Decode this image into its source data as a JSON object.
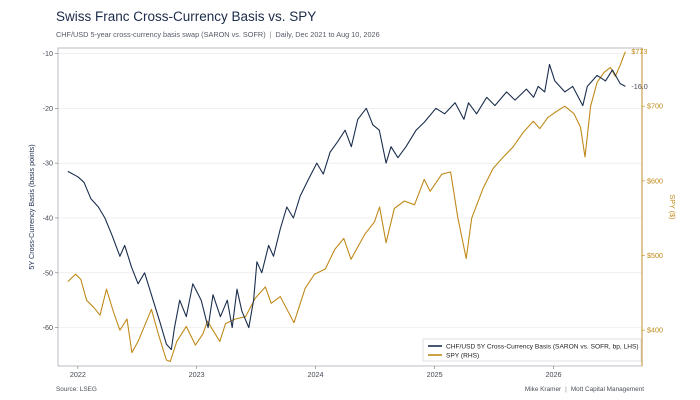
{
  "header": {
    "title": "Swiss Franc Cross-Currency Basis vs. SPY",
    "subtitle_a": "CHF/USD 5-year cross-currency basis swap (SARON vs. SOFR)",
    "subtitle_sep": "|",
    "subtitle_b": "Daily, Dec 2021 to Aug 10, 2026"
  },
  "footer": {
    "source": "Source: LSEG",
    "author": "Mike Kramer",
    "sep": "|",
    "org": "Mott Capital Management"
  },
  "colors": {
    "basis": "#1b2e4e",
    "spy": "#c08a1a",
    "grid": "#e6e6e6"
  },
  "chart_data": {
    "type": "line",
    "title": "Swiss Franc Cross-Currency Basis vs. SPY",
    "x_ticks": [
      "2022",
      "2023",
      "2024",
      "2025",
      "2026"
    ],
    "x_range": [
      "2021-11-01",
      "2026-09-30"
    ],
    "y_left": {
      "label": "5Y Cross-Currency Basis  (basis points)",
      "range": [
        -67,
        -9
      ],
      "ticks": [
        -10,
        -20,
        -30,
        -40,
        -50,
        -60
      ]
    },
    "y_right": {
      "label": "SPY  ($)",
      "range": [
        352,
        778
      ],
      "ticks": [
        400,
        500,
        600,
        700
      ],
      "tick_labels": [
        "$400",
        "$500",
        "$600",
        "$700"
      ]
    },
    "grid": true,
    "legend_position": "bottom-right",
    "series": [
      {
        "name": "CHF/USD 5Y Cross-Currency Basis (SARON vs. SOFR, bp, LHS)",
        "axis": "left",
        "end_label": "-16.0",
        "points": [
          [
            "2021-12-01",
            -31.5
          ],
          [
            "2022-01-01",
            -32.5
          ],
          [
            "2022-01-20",
            -33.5
          ],
          [
            "2022-02-10",
            -36.5
          ],
          [
            "2022-03-05",
            -38
          ],
          [
            "2022-03-25",
            -40
          ],
          [
            "2022-04-15",
            -43
          ],
          [
            "2022-05-10",
            -47
          ],
          [
            "2022-05-25",
            -45
          ],
          [
            "2022-06-15",
            -49
          ],
          [
            "2022-07-05",
            -52
          ],
          [
            "2022-07-25",
            -50
          ],
          [
            "2022-08-15",
            -54
          ],
          [
            "2022-09-10",
            -59
          ],
          [
            "2022-09-30",
            -63
          ],
          [
            "2022-10-15",
            -64
          ],
          [
            "2022-10-25",
            -60
          ],
          [
            "2022-11-10",
            -55
          ],
          [
            "2022-11-30",
            -58
          ],
          [
            "2022-12-20",
            -52
          ],
          [
            "2023-01-15",
            -55
          ],
          [
            "2023-02-05",
            -60
          ],
          [
            "2023-02-20",
            -54
          ],
          [
            "2023-03-15",
            -58
          ],
          [
            "2023-04-05",
            -55
          ],
          [
            "2023-04-20",
            -60
          ],
          [
            "2023-05-05",
            -53
          ],
          [
            "2023-05-20",
            -57
          ],
          [
            "2023-06-10",
            -60
          ],
          [
            "2023-06-25",
            -55
          ],
          [
            "2023-07-05",
            -48
          ],
          [
            "2023-07-20",
            -50
          ],
          [
            "2023-08-10",
            -45
          ],
          [
            "2023-08-25",
            -47
          ],
          [
            "2023-09-15",
            -42
          ],
          [
            "2023-10-05",
            -38
          ],
          [
            "2023-10-25",
            -40
          ],
          [
            "2023-11-15",
            -36
          ],
          [
            "2023-12-10",
            -33
          ],
          [
            "2024-01-05",
            -30
          ],
          [
            "2024-01-25",
            -32
          ],
          [
            "2024-02-15",
            -28
          ],
          [
            "2024-03-10",
            -26
          ],
          [
            "2024-04-01",
            -24
          ],
          [
            "2024-04-20",
            -27
          ],
          [
            "2024-05-10",
            -22
          ],
          [
            "2024-06-05",
            -20
          ],
          [
            "2024-06-25",
            -23
          ],
          [
            "2024-07-15",
            -24
          ],
          [
            "2024-08-05",
            -30
          ],
          [
            "2024-08-20",
            -27
          ],
          [
            "2024-09-10",
            -29
          ],
          [
            "2024-10-05",
            -27
          ],
          [
            "2024-11-05",
            -24
          ],
          [
            "2024-12-01",
            -22.5
          ],
          [
            "2025-01-05",
            -20
          ],
          [
            "2025-02-01",
            -21
          ],
          [
            "2025-03-05",
            -19
          ],
          [
            "2025-04-01",
            -22
          ],
          [
            "2025-04-15",
            -19
          ],
          [
            "2025-05-10",
            -21
          ],
          [
            "2025-06-10",
            -18
          ],
          [
            "2025-07-05",
            -19.5
          ],
          [
            "2025-08-10",
            -17
          ],
          [
            "2025-09-05",
            -18.5
          ],
          [
            "2025-10-10",
            -16.5
          ],
          [
            "2025-11-01",
            -18
          ],
          [
            "2025-11-15",
            -16
          ],
          [
            "2025-12-05",
            -17
          ],
          [
            "2025-12-20",
            -12
          ],
          [
            "2026-01-05",
            -15
          ],
          [
            "2026-02-05",
            -17
          ],
          [
            "2026-03-01",
            -16
          ],
          [
            "2026-04-01",
            -19.5
          ],
          [
            "2026-04-15",
            -16
          ],
          [
            "2026-05-15",
            -14
          ],
          [
            "2026-06-10",
            -15
          ],
          [
            "2026-07-01",
            -13
          ],
          [
            "2026-07-25",
            -15.5
          ],
          [
            "2026-08-10",
            -16
          ]
        ]
      },
      {
        "name": "SPY (RHS)",
        "axis": "right",
        "end_label": "$773",
        "points": [
          [
            "2021-12-01",
            465
          ],
          [
            "2021-12-25",
            475
          ],
          [
            "2022-01-10",
            468
          ],
          [
            "2022-01-28",
            440
          ],
          [
            "2022-02-20",
            430
          ],
          [
            "2022-03-10",
            420
          ],
          [
            "2022-03-30",
            455
          ],
          [
            "2022-04-20",
            425
          ],
          [
            "2022-05-10",
            400
          ],
          [
            "2022-06-01",
            415
          ],
          [
            "2022-06-16",
            370
          ],
          [
            "2022-07-05",
            385
          ],
          [
            "2022-08-15",
            428
          ],
          [
            "2022-09-05",
            395
          ],
          [
            "2022-09-30",
            360
          ],
          [
            "2022-10-12",
            358
          ],
          [
            "2022-11-01",
            385
          ],
          [
            "2022-11-30",
            405
          ],
          [
            "2022-12-28",
            380
          ],
          [
            "2023-01-20",
            395
          ],
          [
            "2023-02-03",
            412
          ],
          [
            "2023-03-13",
            385
          ],
          [
            "2023-03-31",
            409
          ],
          [
            "2023-04-30",
            415
          ],
          [
            "2023-05-31",
            418
          ],
          [
            "2023-06-30",
            443
          ],
          [
            "2023-07-31",
            458
          ],
          [
            "2023-08-18",
            436
          ],
          [
            "2023-09-15",
            445
          ],
          [
            "2023-10-27",
            410
          ],
          [
            "2023-11-30",
            456
          ],
          [
            "2023-12-29",
            475
          ],
          [
            "2024-01-31",
            482
          ],
          [
            "2024-02-29",
            508
          ],
          [
            "2024-03-28",
            523
          ],
          [
            "2024-04-19",
            495
          ],
          [
            "2024-05-31",
            528
          ],
          [
            "2024-06-30",
            545
          ],
          [
            "2024-07-16",
            565
          ],
          [
            "2024-08-05",
            517
          ],
          [
            "2024-08-30",
            563
          ],
          [
            "2024-09-30",
            573
          ],
          [
            "2024-10-31",
            568
          ],
          [
            "2024-11-30",
            602
          ],
          [
            "2024-12-18",
            586
          ],
          [
            "2025-01-23",
            609
          ],
          [
            "2025-02-19",
            612
          ],
          [
            "2025-03-13",
            551
          ],
          [
            "2025-04-08",
            496
          ],
          [
            "2025-04-25",
            550
          ],
          [
            "2025-05-30",
            590
          ],
          [
            "2025-06-30",
            617
          ],
          [
            "2025-07-31",
            632
          ],
          [
            "2025-08-29",
            645
          ],
          [
            "2025-09-30",
            665
          ],
          [
            "2025-10-31",
            680
          ],
          [
            "2025-11-20",
            670
          ],
          [
            "2025-12-15",
            685
          ],
          [
            "2026-01-10",
            693
          ],
          [
            "2026-02-05",
            700
          ],
          [
            "2026-03-05",
            690
          ],
          [
            "2026-03-25",
            672
          ],
          [
            "2026-04-08",
            632
          ],
          [
            "2026-04-25",
            700
          ],
          [
            "2026-05-15",
            732
          ],
          [
            "2026-06-05",
            745
          ],
          [
            "2026-06-25",
            752
          ],
          [
            "2026-07-10",
            740
          ],
          [
            "2026-07-25",
            755
          ],
          [
            "2026-08-05",
            768
          ],
          [
            "2026-08-10",
            773
          ]
        ]
      }
    ]
  }
}
